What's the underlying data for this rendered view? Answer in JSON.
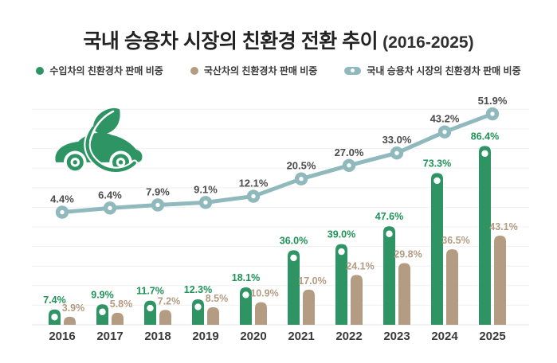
{
  "title": {
    "main": "국내 승용차 시장의 친환경 전환 추이",
    "period": "(2016-2025)"
  },
  "legend": [
    {
      "label": "수입차의 친환경차 판매 비중",
      "marker": "dot",
      "color": "#2e9463"
    },
    {
      "label": "국산차의 친환경차 판매 비중",
      "marker": "dot",
      "color": "#b49c82"
    },
    {
      "label": "국내 승용차 시장의 친환경차 판매 비중",
      "marker": "line-dot",
      "color": "#8fb9bd"
    }
  ],
  "icon": {
    "name": "eco-car-icon",
    "color": "#2e9463"
  },
  "colors": {
    "background": "#ffffff",
    "grid": "#f0f0f0",
    "baseline": "#e6e6e6",
    "year_label": "#3b3b3b",
    "line_label": "#4c4c4c"
  },
  "chart_data": {
    "type": "bar",
    "subtype": "grouped-bars-with-trend-line",
    "title": "국내 승용차 시장의 친환경 전환 추이 (2016-2025)",
    "categories": [
      "2016",
      "2017",
      "2018",
      "2019",
      "2020",
      "2021",
      "2022",
      "2023",
      "2024",
      "2025"
    ],
    "series": [
      {
        "name": "수입차의 친환경차 판매 비중",
        "type": "bar",
        "color": "#2e9463",
        "label_color": "#1e9257",
        "values": [
          7.4,
          9.9,
          11.7,
          12.3,
          18.1,
          36.0,
          39.0,
          47.6,
          73.3,
          86.4
        ]
      },
      {
        "name": "국산차의 친환경차 판매 비중",
        "type": "bar",
        "color": "#b49c82",
        "label_color": "#b49c82",
        "values": [
          3.9,
          5.8,
          7.2,
          8.5,
          10.9,
          17.0,
          24.1,
          29.8,
          36.5,
          43.1
        ]
      },
      {
        "name": "국내 승용차 시장의 친환경차 판매 비중",
        "type": "line",
        "color": "#8fb9bd",
        "label_color": "#4c4c4c",
        "values": [
          4.4,
          6.4,
          7.9,
          9.1,
          12.1,
          20.5,
          27.0,
          33.0,
          43.2,
          51.9
        ]
      }
    ],
    "unit": "%",
    "value_labels": true,
    "xlabel": "",
    "ylabel": "",
    "ylim": [
      0,
      100
    ],
    "grid": true,
    "legend_position": "top"
  }
}
